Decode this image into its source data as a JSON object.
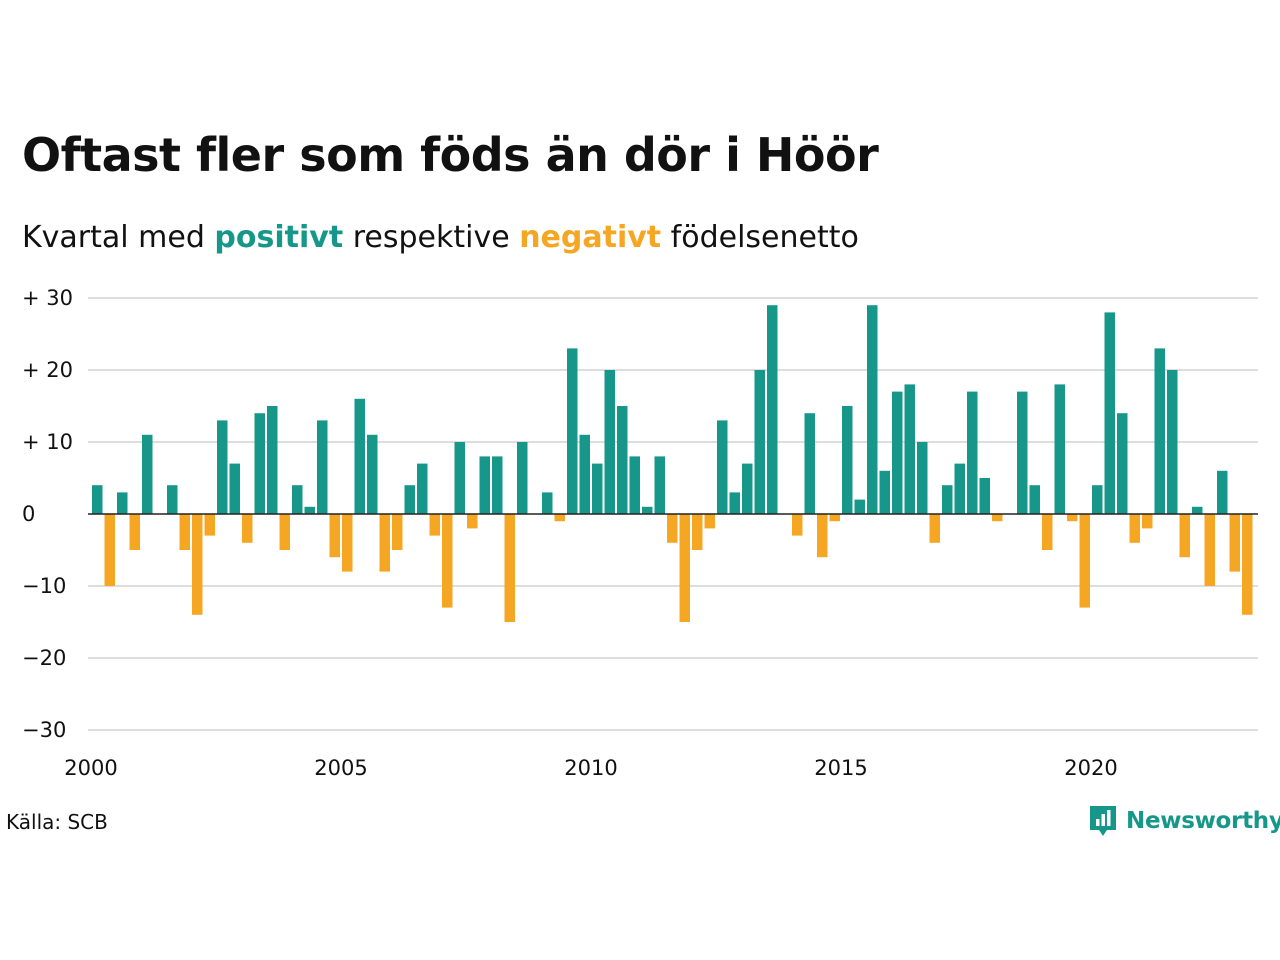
{
  "title": "Oftast fler som föds än dör i Höör",
  "subtitle": {
    "prefix": "Kvartal med ",
    "positive_word": "positivt",
    "middle": " respektive ",
    "negative_word": "negativt",
    "suffix": " födelsenetto"
  },
  "source": "Källa: SCB",
  "brand": "Newsworthy",
  "colors": {
    "positive": "#16978a",
    "negative": "#f5a623",
    "grid": "#dddddd",
    "zero_line": "#222222",
    "text": "#111111"
  },
  "chart_data": {
    "type": "bar",
    "x_unit": "quarter",
    "x_start": "2000 Q1",
    "values": [
      4,
      -10,
      3,
      -5,
      11,
      0,
      4,
      -5,
      -14,
      -3,
      13,
      7,
      -4,
      14,
      15,
      -5,
      4,
      1,
      13,
      -6,
      -8,
      16,
      11,
      -8,
      -5,
      4,
      7,
      -3,
      -13,
      10,
      -2,
      8,
      8,
      -15,
      10,
      0,
      3,
      -1,
      23,
      11,
      7,
      20,
      15,
      8,
      1,
      8,
      -4,
      -15,
      -5,
      -2,
      13,
      3,
      7,
      20,
      29,
      0,
      -3,
      14,
      -6,
      -1,
      15,
      2,
      29,
      6,
      17,
      18,
      10,
      -4,
      4,
      7,
      17,
      5,
      -1,
      0,
      17,
      4,
      -5,
      18,
      -1,
      -13,
      4,
      28,
      14,
      -4,
      -2,
      23,
      20,
      -6,
      1,
      -10,
      6,
      -8,
      -14
    ],
    "ylim": [
      -30,
      30
    ],
    "yticks": [
      30,
      20,
      10,
      0,
      -10,
      -20,
      -30
    ],
    "ytick_labels": [
      "+ 30",
      "+ 20",
      "+ 10",
      "0",
      "−10",
      "−20",
      "−30"
    ],
    "xticks": [
      "2000",
      "2005",
      "2010",
      "2015",
      "2020"
    ],
    "grid": true,
    "legend": "none"
  }
}
